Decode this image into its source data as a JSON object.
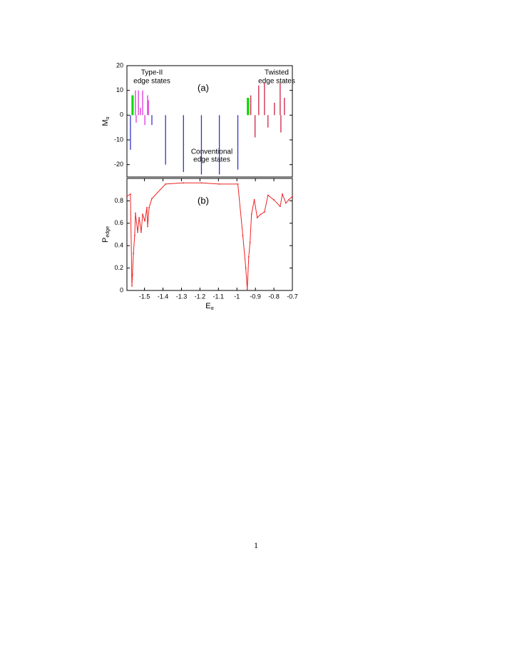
{
  "chart_data": [
    {
      "type": "bar",
      "panel_label": "(a)",
      "y_label": "M",
      "y_label_sub": "α",
      "xlim": [
        -1.595,
        -0.7
      ],
      "ylim": [
        -25,
        20
      ],
      "yticks": [
        20,
        10,
        0,
        -10,
        -20
      ],
      "annotations": [
        [
          "Type-II",
          "edge states"
        ],
        [
          "Twisted",
          "edge states"
        ],
        [
          "Conventional",
          "edge states"
        ]
      ],
      "series": [
        {
          "color": "#00dd00",
          "x": [
            -1.568,
            -1.564,
            -1.561,
            -0.944,
            -0.94,
            -0.936
          ],
          "values": [
            8,
            8,
            8,
            7,
            7,
            7
          ]
        },
        {
          "color": "#3333cc",
          "x": [
            -1.576,
            -1.46,
            -1.386,
            -1.289,
            -1.192,
            -1.095,
            -0.995
          ],
          "values": [
            -14,
            -4,
            -20,
            -23,
            -24,
            -24,
            -22
          ]
        },
        {
          "color": "#dd33dd",
          "x": [
            -1.549,
            -1.545,
            -1.533,
            -1.522,
            -1.51,
            -1.498,
            -1.483,
            -1.479
          ],
          "values": [
            10,
            -3,
            10,
            3,
            10,
            -4,
            8,
            6
          ]
        },
        {
          "color": "#cc2244",
          "x": [
            -0.925,
            -0.902,
            -0.882,
            -0.851,
            -0.832,
            -0.797,
            -0.766,
            -0.762,
            -0.743
          ],
          "values": [
            8,
            -9,
            12,
            13,
            -5,
            5,
            13,
            -7,
            7
          ]
        }
      ]
    },
    {
      "type": "line",
      "panel_label": "(b)",
      "y_label": "P",
      "y_label_sub": "edge",
      "x_label": "E",
      "x_label_sub": "α",
      "xlim": [
        -1.595,
        -0.7
      ],
      "ylim": [
        0,
        1
      ],
      "yticks": [
        0,
        0.2,
        0.4,
        0.6,
        0.8
      ],
      "xticks": [
        -1.5,
        -1.4,
        -1.3,
        -1.2,
        -1.1,
        -1,
        -0.9,
        -0.8,
        -0.7
      ],
      "series": [
        {
          "color": "#ee2222",
          "x": [
            -1.595,
            -1.576,
            -1.568,
            -1.565,
            -1.56,
            -1.553,
            -1.549,
            -1.537,
            -1.529,
            -1.518,
            -1.51,
            -1.498,
            -1.487,
            -1.483,
            -1.475,
            -1.46,
            -1.386,
            -1.289,
            -1.192,
            -1.095,
            -0.995,
            -0.968,
            -0.952,
            -0.944,
            -0.936,
            -0.929,
            -0.921,
            -0.906,
            -0.89,
            -0.871,
            -0.851,
            -0.832,
            -0.801,
            -0.766,
            -0.754,
            -0.735,
            -0.719,
            -0.7
          ],
          "values": [
            0.84,
            0.86,
            0.04,
            0.14,
            0.33,
            0.49,
            0.69,
            0.52,
            0.65,
            0.52,
            0.68,
            0.62,
            0.74,
            0.57,
            0.74,
            0.82,
            0.95,
            0.96,
            0.96,
            0.95,
            0.95,
            0.49,
            0.2,
            0.01,
            0.3,
            0.43,
            0.68,
            0.81,
            0.65,
            0.68,
            0.7,
            0.85,
            0.81,
            0.75,
            0.86,
            0.78,
            0.81,
            0.84
          ]
        }
      ]
    }
  ],
  "page_number": "1"
}
